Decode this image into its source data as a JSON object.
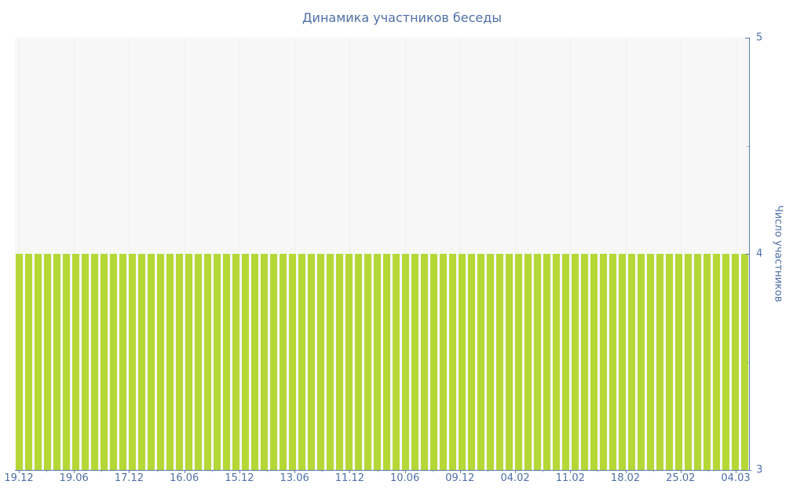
{
  "chart_data": {
    "type": "bar",
    "title": "Динамика участников беседы",
    "xlabel": "",
    "ylabel": "Число участников",
    "ylim": [
      3,
      5
    ],
    "y_major_ticks": [
      5,
      4,
      3
    ],
    "y_minor_ticks": [
      4.5,
      3.5
    ],
    "grid": "vertical-dotted",
    "legend_position": "none",
    "x_tick_labels": [
      "19.12",
      "19.06",
      "17.12",
      "16.06",
      "15.12",
      "13.06",
      "11.12",
      "10.06",
      "09.12",
      "04.02",
      "11.02",
      "18.02",
      "25.02",
      "04.03"
    ],
    "bar_count": 78,
    "values": [
      4,
      4,
      4,
      4,
      4,
      4,
      4,
      4,
      4,
      4,
      4,
      4,
      4,
      4,
      4,
      4,
      4,
      4,
      4,
      4,
      4,
      4,
      4,
      4,
      4,
      4,
      4,
      4,
      4,
      4,
      4,
      4,
      4,
      4,
      4,
      4,
      4,
      4,
      4,
      4,
      4,
      4,
      4,
      4,
      4,
      4,
      4,
      4,
      4,
      4,
      4,
      4,
      4,
      4,
      4,
      4,
      4,
      4,
      4,
      4,
      4,
      4,
      4,
      4,
      4,
      4,
      4,
      4,
      4,
      4,
      4,
      4,
      4,
      4,
      4,
      4,
      4,
      4
    ],
    "colors": {
      "bar": "#b5d837",
      "axis_line": "#5b7ab1",
      "text": "#4d6fa8",
      "plot_background": "#f7f7f7",
      "gridline": "#e8e8e8",
      "minor_tick": "#b0b0b0"
    }
  }
}
